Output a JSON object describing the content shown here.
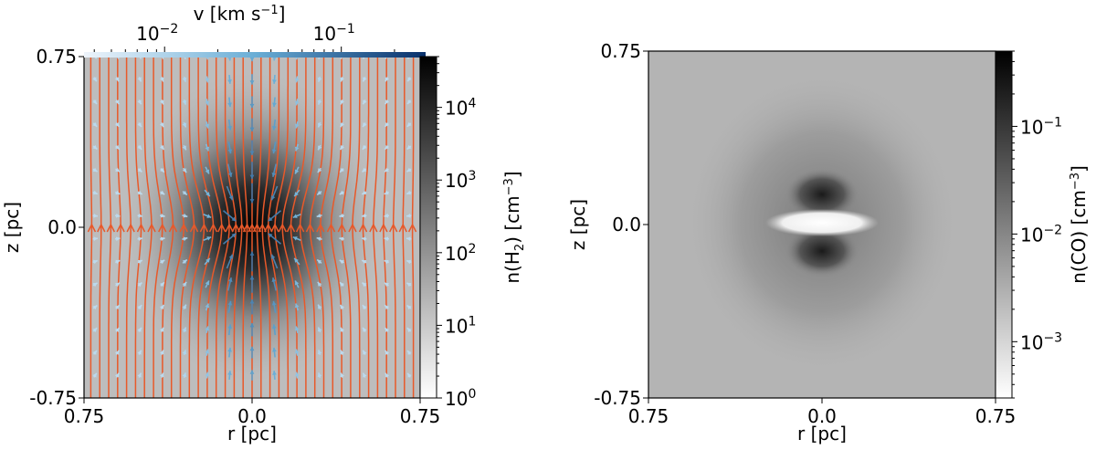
{
  "chart_data": [
    {
      "type": "heatmap",
      "title": "",
      "xlabel": "r [pc]",
      "ylabel": "z [pc]",
      "xlim": [
        -0.75,
        0.75
      ],
      "ylim": [
        -0.75,
        0.75
      ],
      "xticks": [
        {
          "value": -0.75,
          "label": "0.75"
        },
        {
          "value": 0.0,
          "label": "0.0"
        },
        {
          "value": 0.75,
          "label": "0.75"
        }
      ],
      "yticks": [
        {
          "value": 0.75,
          "label": "0.75"
        },
        {
          "value": 0.0,
          "label": "0.0"
        },
        {
          "value": -0.75,
          "label": "-0.75"
        }
      ],
      "colormap": "gray_r",
      "colorbar": {
        "label": "n(H",
        "label_sub": "2",
        "label_tail": ") [cm",
        "label_sup": "−3",
        "label_end": "]",
        "scale": "log",
        "range": [
          1,
          50000
        ],
        "ticks": [
          {
            "value": 1,
            "base": "10",
            "exp": "0"
          },
          {
            "value": 10,
            "base": "10",
            "exp": "1"
          },
          {
            "value": 100,
            "base": "10",
            "exp": "2"
          },
          {
            "value": 1000,
            "base": "10",
            "exp": "3"
          },
          {
            "value": 10000,
            "base": "10",
            "exp": "4"
          }
        ]
      },
      "velocity_colorbar": {
        "label": "v [km s",
        "label_sup": "−1",
        "label_end": "]",
        "scale": "log",
        "range": [
          0.0035,
          0.3
        ],
        "ticks": [
          {
            "value": 0.01,
            "base": "10",
            "exp": "−2"
          },
          {
            "value": 0.1,
            "base": "10",
            "exp": "−1"
          }
        ],
        "color_low": "#e6f0fa",
        "color_high": "#08306b"
      },
      "field_line_color": "#e8592a",
      "field_lines_r": [
        -0.72,
        -0.68,
        -0.64,
        -0.6,
        -0.56,
        -0.52,
        -0.48,
        -0.44,
        -0.4,
        -0.36,
        -0.32,
        -0.28,
        -0.24,
        -0.2,
        -0.16,
        -0.12,
        -0.08,
        -0.04,
        0.0,
        0.04,
        0.08,
        0.12,
        0.16,
        0.2,
        0.24,
        0.28,
        0.32,
        0.36,
        0.4,
        0.44,
        0.48,
        0.52,
        0.56,
        0.6,
        0.64,
        0.68,
        0.72
      ]
    },
    {
      "type": "heatmap",
      "title": "",
      "xlabel": "r [pc]",
      "ylabel": "z [pc]",
      "xlim": [
        -0.75,
        0.75
      ],
      "ylim": [
        -0.75,
        0.75
      ],
      "xticks": [
        {
          "value": -0.75,
          "label": "0.75"
        },
        {
          "value": 0.0,
          "label": "0.0"
        },
        {
          "value": 0.75,
          "label": "0.75"
        }
      ],
      "yticks": [
        {
          "value": 0.75,
          "label": "0.75"
        },
        {
          "value": 0.0,
          "label": "0.0"
        },
        {
          "value": -0.75,
          "label": "-0.75"
        }
      ],
      "colormap": "gray_r",
      "colorbar": {
        "label": "n(CO) [cm",
        "label_sup": "−3",
        "label_end": "]",
        "scale": "log",
        "range": [
          0.0003,
          0.5
        ],
        "ticks": [
          {
            "value": 0.001,
            "base": "10",
            "exp": "−3"
          },
          {
            "value": 0.01,
            "base": "10",
            "exp": "−2"
          },
          {
            "value": 0.1,
            "base": "10",
            "exp": "−1"
          }
        ]
      }
    }
  ]
}
